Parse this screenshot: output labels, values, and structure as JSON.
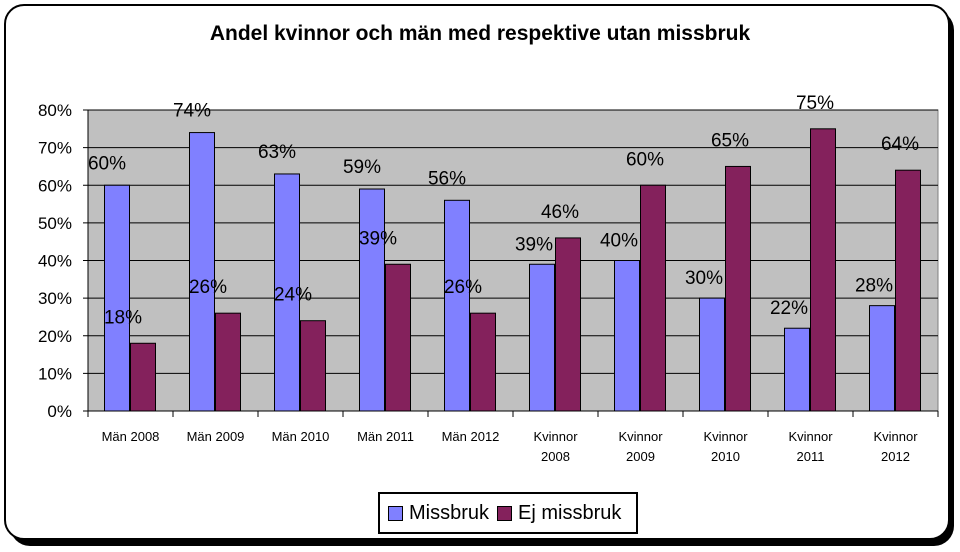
{
  "chart_data": {
    "type": "bar",
    "title": "Andel kvinnor och män med respektive utan missbruk",
    "categories": [
      [
        "Män 2008"
      ],
      [
        "Män 2009"
      ],
      [
        "Män 2010"
      ],
      [
        "Män 2011"
      ],
      [
        "Män 2012"
      ],
      [
        "Kvinnor",
        "2008"
      ],
      [
        "Kvinnor",
        "2009"
      ],
      [
        "Kvinnor",
        "2010"
      ],
      [
        "Kvinnor",
        "2011"
      ],
      [
        "Kvinnor",
        "2012"
      ]
    ],
    "series": [
      {
        "name": "Missbruk",
        "color": "#8080ff",
        "values": [
          60,
          74,
          63,
          59,
          56,
          39,
          40,
          30,
          22,
          28
        ],
        "labels": [
          "60%",
          "74%",
          "63%",
          "59%",
          "56%",
          "39%",
          "40%",
          "30%",
          "22%",
          "28%"
        ]
      },
      {
        "name": "Ej missbruk",
        "color": "#84215c",
        "values": [
          18,
          26,
          24,
          39,
          26,
          46,
          60,
          65,
          75,
          64
        ],
        "labels": [
          "18%",
          "26%",
          "24%",
          "39%",
          "26%",
          "46%",
          "60%",
          "65%",
          "75%",
          "64%"
        ]
      }
    ],
    "ylim": [
      0,
      80
    ],
    "yticks": [
      0,
      10,
      20,
      30,
      40,
      50,
      60,
      70,
      80
    ],
    "ytick_labels": [
      "0%",
      "10%",
      "20%",
      "30%",
      "40%",
      "50%",
      "60%",
      "70%",
      "80%"
    ],
    "plot_background": "#c0c0c0",
    "grid": true,
    "legend_position": "bottom"
  }
}
